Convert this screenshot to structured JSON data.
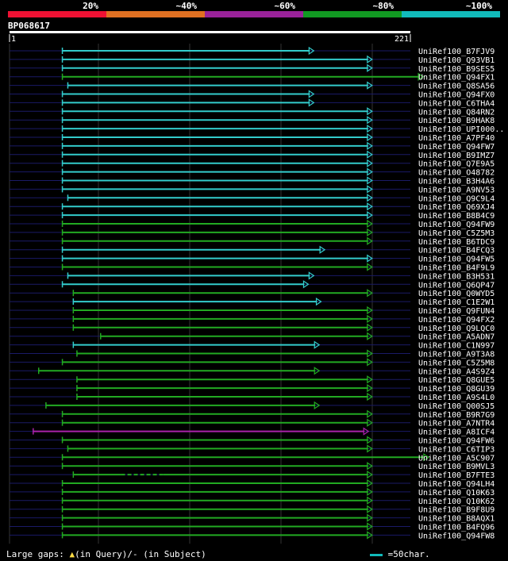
{
  "title": "BP068617",
  "footer": {
    "gaps_label": "Large gaps:",
    "query_part": "(in Query)/-",
    "subject_part": "(in Subject)",
    "scale_label": "=50char."
  },
  "chart_data": {
    "type": "alignment-overview",
    "query_length": 221,
    "axis_start_label": "1",
    "axis_end_label": "221",
    "identity_legend": [
      {
        "label": "20%",
        "color": "#ee1133"
      },
      {
        "label": "~40%",
        "color": "#e07022"
      },
      {
        "label": "~60%",
        "color": "#992299"
      },
      {
        "label": "~80%",
        "color": "#119922"
      },
      {
        "label": "~100%",
        "color": "#11bbbb"
      }
    ],
    "hits": [
      {
        "name": "UniRef100_B7FJV9",
        "start": 30,
        "end": 168,
        "color": "cyan"
      },
      {
        "name": "UniRef100_Q93VB1",
        "start": 30,
        "end": 200,
        "color": "cyan"
      },
      {
        "name": "UniRef100_B9SES5",
        "start": 30,
        "end": 200,
        "color": "cyan"
      },
      {
        "name": "UniRef100_Q94FX1",
        "start": 30,
        "end": 228,
        "color": "green"
      },
      {
        "name": "UniRef100_Q8SA56",
        "start": 33,
        "end": 200,
        "color": "cyan"
      },
      {
        "name": "UniRef100_Q94FX0",
        "start": 30,
        "end": 168,
        "color": "cyan"
      },
      {
        "name": "UniRef100_C6THA4",
        "start": 30,
        "end": 168,
        "color": "cyan"
      },
      {
        "name": "UniRef100_Q84RN2",
        "start": 30,
        "end": 200,
        "color": "cyan"
      },
      {
        "name": "UniRef100_B9HAK8",
        "start": 30,
        "end": 200,
        "color": "cyan"
      },
      {
        "name": "UniRef100_UPI000..",
        "start": 30,
        "end": 200,
        "color": "cyan"
      },
      {
        "name": "UniRef100_A7PF40",
        "start": 30,
        "end": 200,
        "color": "cyan"
      },
      {
        "name": "UniRef100_Q94FW7",
        "start": 30,
        "end": 200,
        "color": "cyan"
      },
      {
        "name": "UniRef100_B9IMZ7",
        "start": 30,
        "end": 200,
        "color": "cyan"
      },
      {
        "name": "UniRef100_Q7E9A5",
        "start": 30,
        "end": 200,
        "color": "cyan"
      },
      {
        "name": "UniRef100_O48782",
        "start": 30,
        "end": 200,
        "color": "cyan"
      },
      {
        "name": "UniRef100_B3H4A6",
        "start": 30,
        "end": 200,
        "color": "cyan"
      },
      {
        "name": "UniRef100_A9NV53",
        "start": 30,
        "end": 200,
        "color": "cyan"
      },
      {
        "name": "UniRef100_Q9C9L4",
        "start": 33,
        "end": 200,
        "color": "cyan"
      },
      {
        "name": "UniRef100_Q69XJ4",
        "start": 30,
        "end": 200,
        "color": "cyan"
      },
      {
        "name": "UniRef100_B8B4C9",
        "start": 30,
        "end": 200,
        "color": "cyan"
      },
      {
        "name": "UniRef100_Q94FW9",
        "start": 30,
        "end": 200,
        "color": "green"
      },
      {
        "name": "UniRef100_C5Z5M3",
        "start": 30,
        "end": 200,
        "color": "green"
      },
      {
        "name": "UniRef100_B6TDC9",
        "start": 30,
        "end": 200,
        "color": "green"
      },
      {
        "name": "UniRef100_B4FCQ3",
        "start": 30,
        "end": 174,
        "color": "cyan"
      },
      {
        "name": "UniRef100_Q94FW5",
        "start": 30,
        "end": 200,
        "color": "cyan"
      },
      {
        "name": "UniRef100_B4F9L9",
        "start": 30,
        "end": 200,
        "color": "green"
      },
      {
        "name": "UniRef100_B3H531",
        "start": 33,
        "end": 168,
        "color": "cyan"
      },
      {
        "name": "UniRef100_Q6QP47",
        "start": 30,
        "end": 165,
        "color": "cyan"
      },
      {
        "name": "UniRef100_Q0WYD5",
        "start": 36,
        "end": 200,
        "color": "green"
      },
      {
        "name": "UniRef100_C1E2W1",
        "start": 36,
        "end": 172,
        "color": "cyan"
      },
      {
        "name": "UniRef100_Q9FUN4",
        "start": 36,
        "end": 200,
        "color": "green"
      },
      {
        "name": "UniRef100_Q94FX2",
        "start": 36,
        "end": 200,
        "color": "green"
      },
      {
        "name": "UniRef100_Q9LQC0",
        "start": 36,
        "end": 200,
        "color": "green"
      },
      {
        "name": "UniRef100_A5ADN7",
        "start": 51,
        "end": 200,
        "color": "green"
      },
      {
        "name": "UniRef100_C1N997",
        "start": 36,
        "end": 171,
        "color": "cyan"
      },
      {
        "name": "UniRef100_A9T3A8",
        "start": 38,
        "end": 200,
        "color": "green"
      },
      {
        "name": "UniRef100_C5Z5M8",
        "start": 30,
        "end": 200,
        "color": "green"
      },
      {
        "name": "UniRef100_A4S9Z4",
        "start": 17,
        "end": 171,
        "color": "green"
      },
      {
        "name": "UniRef100_Q8GUE5",
        "start": 38,
        "end": 200,
        "color": "green"
      },
      {
        "name": "UniRef100_Q8GU39",
        "start": 38,
        "end": 200,
        "color": "green"
      },
      {
        "name": "UniRef100_A9S4L0",
        "start": 38,
        "end": 200,
        "color": "green"
      },
      {
        "name": "UniRef100_Q00SJ5",
        "start": 21,
        "end": 171,
        "color": "green"
      },
      {
        "name": "UniRef100_B9R7G9",
        "start": 30,
        "end": 200,
        "color": "green"
      },
      {
        "name": "UniRef100_A7NTR4",
        "start": 30,
        "end": 200,
        "color": "green"
      },
      {
        "name": "UniRef100_A8ICF4",
        "start": 14,
        "end": 198,
        "color": "purple"
      },
      {
        "name": "UniRef100_Q94FW6",
        "start": 30,
        "end": 200,
        "color": "green"
      },
      {
        "name": "UniRef100_C6TIP3",
        "start": 33,
        "end": 200,
        "color": "green"
      },
      {
        "name": "UniRef100_A5C907",
        "start": 30,
        "end": 231,
        "color": "green"
      },
      {
        "name": "UniRef100_B9MVL3",
        "start": 30,
        "end": 200,
        "color": "green"
      },
      {
        "name": "UniRef100_B7FTE3",
        "start": 36,
        "end": 200,
        "color": "green",
        "gap": true
      },
      {
        "name": "UniRef100_Q94LH4",
        "start": 30,
        "end": 200,
        "color": "green"
      },
      {
        "name": "UniRef100_Q10K63",
        "start": 30,
        "end": 200,
        "color": "green"
      },
      {
        "name": "UniRef100_Q10K62",
        "start": 30,
        "end": 200,
        "color": "green"
      },
      {
        "name": "UniRef100_B9F8U9",
        "start": 30,
        "end": 200,
        "color": "green"
      },
      {
        "name": "UniRef100_B8AQX1",
        "start": 30,
        "end": 200,
        "color": "green"
      },
      {
        "name": "UniRef100_B4FQ96",
        "start": 30,
        "end": 200,
        "color": "green"
      },
      {
        "name": "UniRef100_Q94FW8",
        "start": 30,
        "end": 200,
        "color": "green"
      }
    ]
  }
}
